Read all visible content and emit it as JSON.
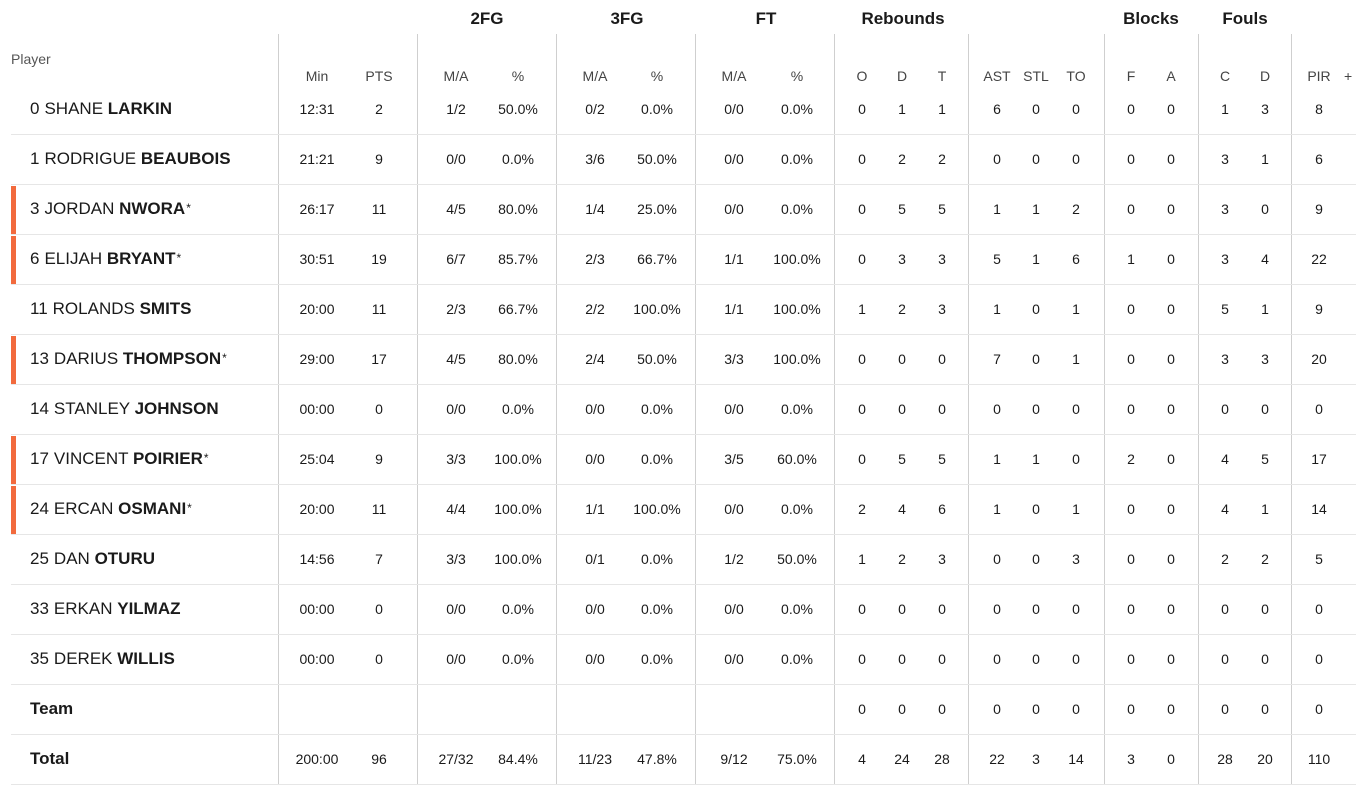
{
  "header": {
    "groups": [
      "2FG",
      "3FG",
      "FT",
      "Rebounds",
      "Blocks",
      "Fouls"
    ],
    "player_label": "Player",
    "columns": [
      "Min",
      "PTS",
      "M/A",
      "%",
      "M/A",
      "%",
      "M/A",
      "%",
      "O",
      "D",
      "T",
      "AST",
      "STL",
      "TO",
      "F",
      "A",
      "C",
      "D",
      "PIR"
    ],
    "plus": "+"
  },
  "colors": {
    "starter_marker": "#f26a3d",
    "row_divider": "#e6e6e6",
    "column_divider": "#cfcfcf"
  },
  "players": [
    {
      "num": "0",
      "first": "SHANE",
      "last": "LARKIN",
      "starter": false,
      "stats": [
        "12:31",
        "2",
        "1/2",
        "50.0%",
        "0/2",
        "0.0%",
        "0/0",
        "0.0%",
        "0",
        "1",
        "1",
        "6",
        "0",
        "0",
        "0",
        "0",
        "1",
        "3",
        "8"
      ]
    },
    {
      "num": "1",
      "first": "RODRIGUE",
      "last": "BEAUBOIS",
      "starter": false,
      "stats": [
        "21:21",
        "9",
        "0/0",
        "0.0%",
        "3/6",
        "50.0%",
        "0/0",
        "0.0%",
        "0",
        "2",
        "2",
        "0",
        "0",
        "0",
        "0",
        "0",
        "3",
        "1",
        "6"
      ]
    },
    {
      "num": "3",
      "first": "JORDAN",
      "last": "NWORA",
      "starter": true,
      "stats": [
        "26:17",
        "11",
        "4/5",
        "80.0%",
        "1/4",
        "25.0%",
        "0/0",
        "0.0%",
        "0",
        "5",
        "5",
        "1",
        "1",
        "2",
        "0",
        "0",
        "3",
        "0",
        "9"
      ]
    },
    {
      "num": "6",
      "first": "ELIJAH",
      "last": "BRYANT",
      "starter": true,
      "stats": [
        "30:51",
        "19",
        "6/7",
        "85.7%",
        "2/3",
        "66.7%",
        "1/1",
        "100.0%",
        "0",
        "3",
        "3",
        "5",
        "1",
        "6",
        "1",
        "0",
        "3",
        "4",
        "22"
      ]
    },
    {
      "num": "11",
      "first": "ROLANDS",
      "last": "SMITS",
      "starter": false,
      "stats": [
        "20:00",
        "11",
        "2/3",
        "66.7%",
        "2/2",
        "100.0%",
        "1/1",
        "100.0%",
        "1",
        "2",
        "3",
        "1",
        "0",
        "1",
        "0",
        "0",
        "5",
        "1",
        "9"
      ]
    },
    {
      "num": "13",
      "first": "DARIUS",
      "last": "THOMPSON",
      "starter": true,
      "stats": [
        "29:00",
        "17",
        "4/5",
        "80.0%",
        "2/4",
        "50.0%",
        "3/3",
        "100.0%",
        "0",
        "0",
        "0",
        "7",
        "0",
        "1",
        "0",
        "0",
        "3",
        "3",
        "20"
      ]
    },
    {
      "num": "14",
      "first": "STANLEY",
      "last": "JOHNSON",
      "starter": false,
      "stats": [
        "00:00",
        "0",
        "0/0",
        "0.0%",
        "0/0",
        "0.0%",
        "0/0",
        "0.0%",
        "0",
        "0",
        "0",
        "0",
        "0",
        "0",
        "0",
        "0",
        "0",
        "0",
        "0"
      ]
    },
    {
      "num": "17",
      "first": "VINCENT",
      "last": "POIRIER",
      "starter": true,
      "stats": [
        "25:04",
        "9",
        "3/3",
        "100.0%",
        "0/0",
        "0.0%",
        "3/5",
        "60.0%",
        "0",
        "5",
        "5",
        "1",
        "1",
        "0",
        "2",
        "0",
        "4",
        "5",
        "17"
      ]
    },
    {
      "num": "24",
      "first": "ERCAN",
      "last": "OSMANI",
      "starter": true,
      "stats": [
        "20:00",
        "11",
        "4/4",
        "100.0%",
        "1/1",
        "100.0%",
        "0/0",
        "0.0%",
        "2",
        "4",
        "6",
        "1",
        "0",
        "1",
        "0",
        "0",
        "4",
        "1",
        "14"
      ]
    },
    {
      "num": "25",
      "first": "DAN",
      "last": "OTURU",
      "starter": false,
      "stats": [
        "14:56",
        "7",
        "3/3",
        "100.0%",
        "0/1",
        "0.0%",
        "1/2",
        "50.0%",
        "1",
        "2",
        "3",
        "0",
        "0",
        "3",
        "0",
        "0",
        "2",
        "2",
        "5"
      ]
    },
    {
      "num": "33",
      "first": "ERKAN",
      "last": "YILMAZ",
      "starter": false,
      "stats": [
        "00:00",
        "0",
        "0/0",
        "0.0%",
        "0/0",
        "0.0%",
        "0/0",
        "0.0%",
        "0",
        "0",
        "0",
        "0",
        "0",
        "0",
        "0",
        "0",
        "0",
        "0",
        "0"
      ]
    },
    {
      "num": "35",
      "first": "DEREK",
      "last": "WILLIS",
      "starter": false,
      "stats": [
        "00:00",
        "0",
        "0/0",
        "0.0%",
        "0/0",
        "0.0%",
        "0/0",
        "0.0%",
        "0",
        "0",
        "0",
        "0",
        "0",
        "0",
        "0",
        "0",
        "0",
        "0",
        "0"
      ]
    }
  ],
  "team": {
    "label": "Team",
    "stats": [
      "",
      "",
      "",
      "",
      "",
      "",
      "",
      "",
      "0",
      "0",
      "0",
      "0",
      "0",
      "0",
      "0",
      "0",
      "0",
      "0",
      "0"
    ]
  },
  "total": {
    "label": "Total",
    "stats": [
      "200:00",
      "96",
      "27/32",
      "84.4%",
      "11/23",
      "47.8%",
      "9/12",
      "75.0%",
      "4",
      "24",
      "28",
      "22",
      "3",
      "14",
      "3",
      "0",
      "28",
      "20",
      "110"
    ]
  },
  "starter_mark": "*"
}
